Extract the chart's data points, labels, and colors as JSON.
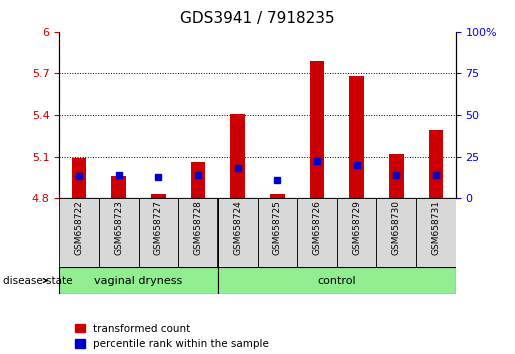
{
  "title": "GDS3941 / 7918235",
  "samples": [
    "GSM658722",
    "GSM658723",
    "GSM658727",
    "GSM658728",
    "GSM658724",
    "GSM658725",
    "GSM658726",
    "GSM658729",
    "GSM658730",
    "GSM658731"
  ],
  "red_values": [
    5.09,
    4.96,
    4.83,
    5.06,
    5.41,
    4.83,
    5.79,
    5.68,
    5.12,
    5.29
  ],
  "blue_values": [
    4.96,
    4.97,
    4.95,
    4.97,
    5.02,
    4.93,
    5.07,
    5.04,
    4.97,
    4.97
  ],
  "baseline": 4.8,
  "ylim_left": [
    4.8,
    6.0
  ],
  "ylim_right": [
    0,
    100
  ],
  "yticks_left": [
    4.8,
    5.1,
    5.4,
    5.7,
    6.0
  ],
  "yticks_right": [
    0,
    25,
    50,
    75,
    100
  ],
  "group_boundary": 4,
  "bar_width": 0.5,
  "red_color": "#CC0000",
  "blue_color": "#0000CC",
  "green_color": "#90EE90",
  "legend_labels": [
    "transformed count",
    "percentile rank within the sample"
  ],
  "disease_state_label": "disease state",
  "group_labels": [
    "vaginal dryness",
    "control"
  ],
  "grid_ticks": [
    5.1,
    5.4,
    5.7
  ],
  "ytick_labels_left": [
    "4.8",
    "5.1",
    "5.4",
    "5.7",
    "6"
  ],
  "ytick_labels_right": [
    "0",
    "25",
    "50",
    "75",
    "100%"
  ]
}
